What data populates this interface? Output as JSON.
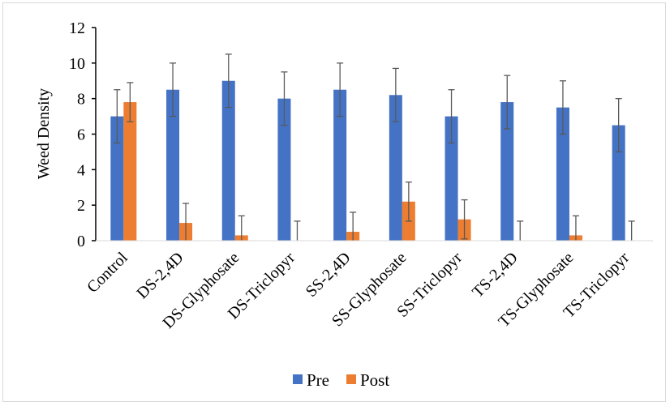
{
  "chart_data": {
    "type": "bar",
    "title": "",
    "xlabel": "",
    "ylabel": "Weed Density",
    "ylim": [
      0,
      12
    ],
    "yticks": [
      0,
      2,
      4,
      6,
      8,
      10,
      12
    ],
    "grid": false,
    "legend_position": "bottom",
    "categories": [
      "Control",
      "DS-2,4D",
      "DS-Glyphosate",
      "DS-Triclopyr",
      "SS-2,4D",
      "SS-Glyphosate",
      "SS-Triclopyr",
      "TS-2,4D",
      "TS-Glyphosate",
      "TS-Triclopyr"
    ],
    "series": [
      {
        "name": "Pre",
        "color": "#4472C4",
        "values": [
          7.0,
          8.5,
          9.0,
          8.0,
          8.5,
          8.2,
          7.0,
          7.8,
          7.5,
          6.5
        ],
        "error": [
          1.5,
          1.5,
          1.5,
          1.5,
          1.5,
          1.5,
          1.5,
          1.5,
          1.5,
          1.5
        ]
      },
      {
        "name": "Post",
        "color": "#ED7D31",
        "values": [
          7.8,
          1.0,
          0.3,
          0.0,
          0.5,
          2.2,
          1.2,
          0.0,
          0.3,
          0.0
        ],
        "error": [
          1.1,
          1.1,
          1.1,
          1.1,
          1.1,
          1.1,
          1.1,
          1.1,
          1.1,
          1.1
        ]
      }
    ]
  }
}
